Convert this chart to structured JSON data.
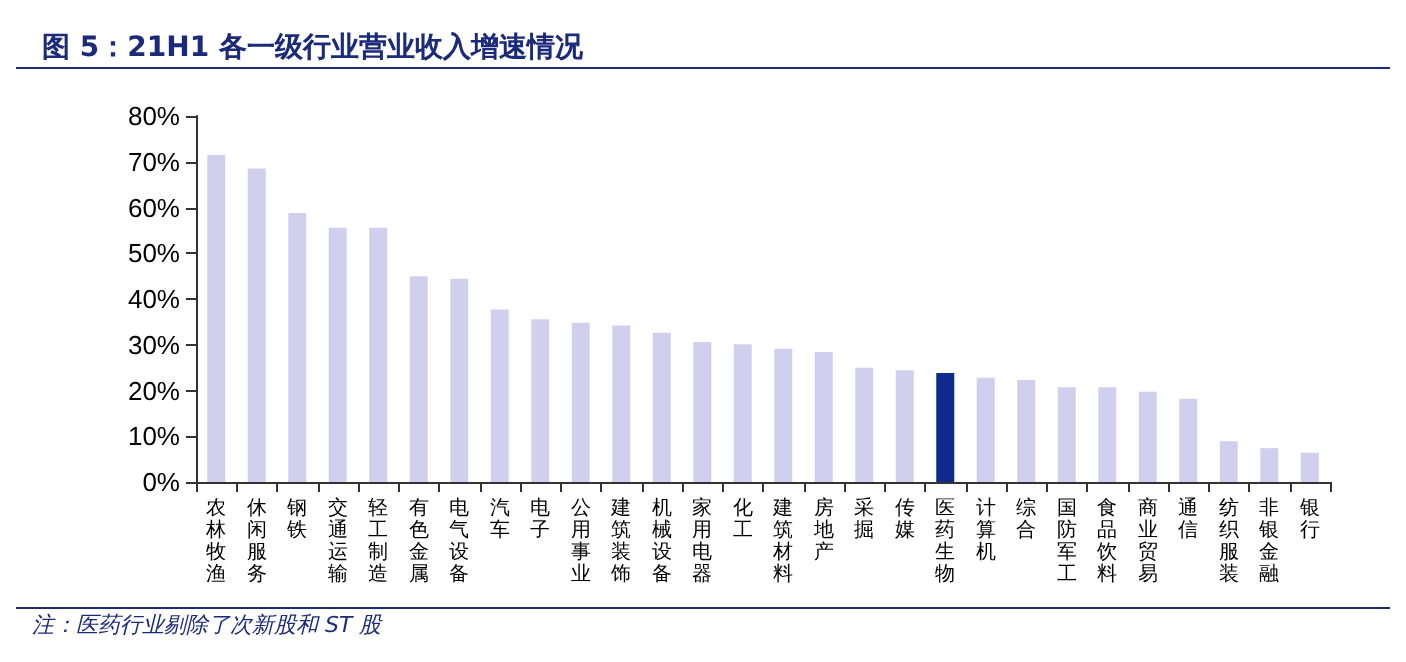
{
  "chart_data": {
    "type": "bar",
    "title": "图 5：21H1 各一级行业营业收入增速情况",
    "categories": [
      "农林牧渔",
      "休闲服务",
      "钢铁",
      "交通运输",
      "轻工制造",
      "有色金属",
      "电气设备",
      "汽车",
      "电子",
      "公用事业",
      "建筑装饰",
      "机械设备",
      "家用电器",
      "化工",
      "建筑材料",
      "房地产",
      "采掘",
      "传媒",
      "医药生物",
      "计算机",
      "综合",
      "国防军工",
      "食品饮料",
      "商业贸易",
      "通信",
      "纺织服装",
      "非银金融",
      "银行"
    ],
    "values": [
      71.5,
      68.5,
      58.8,
      55.6,
      55.6,
      45,
      44.4,
      37.7,
      35.6,
      34.8,
      34.2,
      32.6,
      30.6,
      30.1,
      29.1,
      28.4,
      25,
      24.4,
      23.8,
      22.8,
      22.3,
      20.7,
      20.7,
      19.7,
      18.2,
      8.9,
      7.4,
      6.4
    ],
    "colors": [
      "#d0d0ee",
      "#d0d0ee",
      "#d0d0ee",
      "#d0d0ee",
      "#d0d0ee",
      "#d0d0ee",
      "#d0d0ee",
      "#d0d0ee",
      "#d0d0ee",
      "#d0d0ee",
      "#d0d0ee",
      "#d0d0ee",
      "#d0d0ee",
      "#d0d0ee",
      "#d0d0ee",
      "#d0d0ee",
      "#d0d0ee",
      "#d0d0ee",
      "#0f2a8c",
      "#d0d0ee",
      "#d0d0ee",
      "#d0d0ee",
      "#d0d0ee",
      "#d0d0ee",
      "#d0d0ee",
      "#d0d0ee",
      "#d0d0ee",
      "#d0d0ee"
    ],
    "ylim": [
      0,
      80
    ],
    "yticks": [
      {
        "value": 0,
        "label": "0%"
      },
      {
        "value": 10,
        "label": "10%"
      },
      {
        "value": 20,
        "label": "20%"
      },
      {
        "value": 30,
        "label": "30%"
      },
      {
        "value": 40,
        "label": "40%"
      },
      {
        "value": 50,
        "label": "50%"
      },
      {
        "value": 60,
        "label": "60%"
      },
      {
        "value": 70,
        "label": "70%"
      },
      {
        "value": 80,
        "label": "80%"
      }
    ],
    "grid": false,
    "annotations": [
      "注：医药行业剔除了次新股和 ST 股"
    ]
  }
}
